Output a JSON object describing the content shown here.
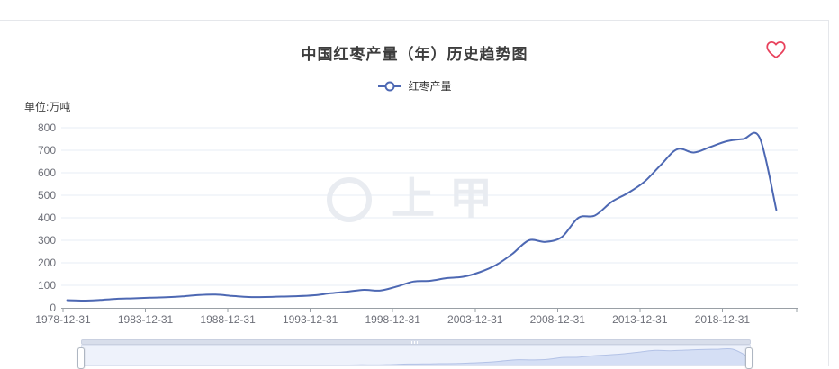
{
  "header": {
    "title": "中国红枣产量（年）历史趋势图"
  },
  "legend": {
    "items": [
      {
        "label": "红枣产量",
        "color": "#4d68b3",
        "marker": "line-hollow-circle"
      }
    ]
  },
  "y_axis": {
    "unit_label": "单位:万吨"
  },
  "watermark": {
    "text": "上甲",
    "logo": "shangjia-ring-logo"
  },
  "icons": {
    "favorite": "heart-outline"
  },
  "colors": {
    "accent_line": "#4d68b3",
    "grid_line": "#e7ecf4",
    "axis_line": "#9aa0a6",
    "axis_label": "#6e7079",
    "title_text": "#3d3d3d",
    "heart": "#e8415c",
    "watermark": "#e9ecf1",
    "panel_border": "#e5e7eb",
    "datazoom_fill": "#d5dff5",
    "datazoom_stroke": "#b3c2e6",
    "datazoom_background": "#eef2fb"
  },
  "chart_data": {
    "type": "line",
    "title": "中国红枣产量（年）历史趋势图",
    "unit": "万吨",
    "smooth": true,
    "grid": true,
    "legend_position": "top",
    "ylim": [
      0,
      800
    ],
    "y_ticks": [
      0,
      100,
      200,
      300,
      400,
      500,
      600,
      700,
      800
    ],
    "x_tick_labels": [
      "1978-12-31",
      "1983-12-31",
      "1988-12-31",
      "1993-12-31",
      "1998-12-31",
      "2003-12-31",
      "2008-12-31",
      "2013-12-31",
      "2018-12-31"
    ],
    "categories": [
      "1978-12-31",
      "1979-12-31",
      "1980-12-31",
      "1981-12-31",
      "1982-12-31",
      "1983-12-31",
      "1984-12-31",
      "1985-12-31",
      "1986-12-31",
      "1987-12-31",
      "1988-12-31",
      "1989-12-31",
      "1990-12-31",
      "1991-12-31",
      "1992-12-31",
      "1993-12-31",
      "1994-12-31",
      "1995-12-31",
      "1996-12-31",
      "1997-12-31",
      "1998-12-31",
      "1999-12-31",
      "2000-12-31",
      "2001-12-31",
      "2002-12-31",
      "2003-12-31",
      "2004-12-31",
      "2005-12-31",
      "2006-12-31",
      "2007-12-31",
      "2008-12-31",
      "2009-12-31",
      "2010-12-31",
      "2011-12-31",
      "2012-12-31",
      "2013-12-31",
      "2014-12-31",
      "2015-12-31",
      "2016-12-31",
      "2017-12-31",
      "2018-12-31",
      "2019-12-31",
      "2020-12-31",
      "2021-12-31"
    ],
    "series": [
      {
        "name": "红枣产量",
        "color": "#4d68b3",
        "values": [
          34,
          32,
          35,
          40,
          42,
          45,
          47,
          51,
          57,
          59,
          53,
          48,
          48,
          50,
          52,
          56,
          65,
          72,
          80,
          77,
          95,
          117,
          120,
          132,
          138,
          158,
          190,
          240,
          300,
          293,
          315,
          400,
          410,
          470,
          510,
          560,
          635,
          705,
          690,
          715,
          740,
          750,
          755,
          435
        ]
      }
    ]
  }
}
